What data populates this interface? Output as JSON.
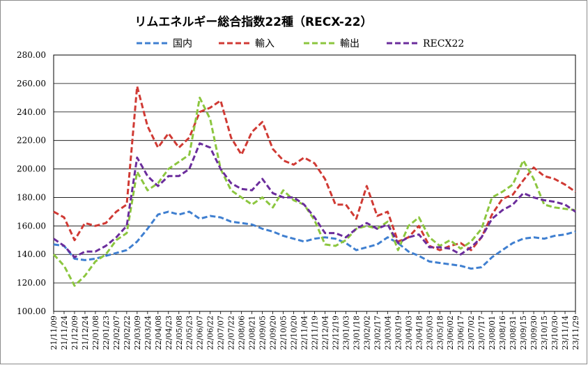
{
  "chart_data": {
    "type": "line",
    "title": "リムエネルギー総合指数22種（RECX-22）",
    "ylim": [
      100,
      280
    ],
    "yticks": [
      "100.00",
      "120.00",
      "140.00",
      "160.00",
      "180.00",
      "200.00",
      "220.00",
      "240.00",
      "260.00",
      "280.00"
    ],
    "grid": true,
    "legend_position": "top",
    "categories": [
      "21/11/09",
      "21/11/24",
      "21/12/09",
      "21/12/24",
      "22/01/08",
      "22/01/23",
      "22/02/07",
      "22/02/22",
      "22/03/09",
      "22/03/24",
      "22/04/08",
      "22/04/23",
      "22/05/08",
      "22/05/23",
      "22/06/07",
      "22/06/22",
      "22/07/07",
      "22/07/22",
      "22/08/06",
      "22/08/21",
      "22/09/05",
      "22/09/20",
      "22/10/05",
      "22/10/20",
      "22/11/04",
      "22/11/19",
      "22/12/04",
      "22/12/19",
      "23/01/03",
      "23/01/18",
      "23/02/02",
      "23/02/17",
      "23/03/04",
      "23/03/19",
      "23/04/03",
      "23/04/18",
      "23/05/03",
      "23/05/18",
      "23/06/02",
      "23/06/17",
      "23/07/02",
      "23/07/17",
      "23/08/01",
      "23/08/16",
      "23/08/31",
      "23/09/15",
      "23/09/30",
      "23/10/15",
      "23/10/30",
      "23/11/14",
      "23/11/29"
    ],
    "series": [
      {
        "name": "国内",
        "color": "#3f7fd0",
        "values": [
          147,
          146,
          137,
          136,
          137,
          139,
          141,
          143,
          149,
          158,
          168,
          170,
          168,
          170,
          165,
          167,
          166,
          163,
          162,
          161,
          158,
          156,
          153,
          151,
          149,
          151,
          152,
          151,
          148,
          143,
          145,
          147,
          152,
          148,
          142,
          139,
          135,
          134,
          133,
          132,
          130,
          131,
          138,
          143,
          148,
          151,
          152,
          151,
          153,
          154,
          156
        ]
      },
      {
        "name": "輸入",
        "color": "#d03a34",
        "values": [
          170,
          166,
          150,
          162,
          160,
          162,
          170,
          175,
          258,
          230,
          215,
          225,
          215,
          222,
          240,
          243,
          248,
          222,
          210,
          226,
          233,
          214,
          206,
          203,
          208,
          204,
          193,
          175,
          175,
          165,
          188,
          167,
          170,
          149,
          152,
          160,
          146,
          143,
          146,
          148,
          143,
          152,
          168,
          179,
          182,
          192,
          201,
          195,
          193,
          189,
          184
        ]
      },
      {
        "name": "輸出",
        "color": "#8cc63f",
        "values": [
          140,
          132,
          118,
          125,
          135,
          140,
          150,
          155,
          198,
          185,
          190,
          200,
          205,
          210,
          250,
          235,
          200,
          185,
          180,
          175,
          180,
          173,
          185,
          178,
          175,
          164,
          147,
          146,
          150,
          158,
          160,
          158,
          163,
          143,
          160,
          166,
          152,
          146,
          150,
          144,
          149,
          158,
          180,
          184,
          189,
          206,
          193,
          175,
          173,
          172,
          171
        ]
      },
      {
        "name": "RECX22",
        "color": "#6b2d9c",
        "values": [
          151,
          146,
          138,
          142,
          142,
          146,
          152,
          160,
          208,
          195,
          188,
          195,
          195,
          200,
          218,
          215,
          200,
          190,
          186,
          185,
          193,
          183,
          180,
          180,
          175,
          166,
          155,
          155,
          152,
          158,
          162,
          158,
          161,
          148,
          152,
          154,
          145,
          145,
          144,
          140,
          145,
          152,
          165,
          171,
          175,
          183,
          180,
          178,
          177,
          175,
          170
        ]
      }
    ]
  }
}
